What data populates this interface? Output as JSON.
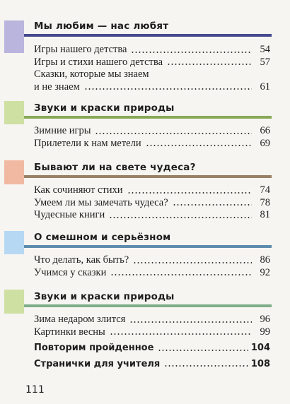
{
  "sections": [
    {
      "title": "Мы любим — нас любят",
      "colors": {
        "marker": "#b9b5dd",
        "rule": "#454a8f"
      },
      "entries": [
        {
          "title": "Игры нашего детства",
          "page": "54"
        },
        {
          "title": "Игры и стихи нашего детства",
          "page": "57"
        },
        {
          "title_line1": "Сказки, которые мы знаем",
          "title_line2": "и не знаем",
          "page": "61"
        }
      ]
    },
    {
      "title": "Звуки и краски природы",
      "colors": {
        "marker": "#cfe0a3",
        "rule": "#88a858"
      },
      "entries": [
        {
          "title": "Зимние игры",
          "page": "66"
        },
        {
          "title": "Прилетели к нам метели",
          "page": "69"
        }
      ]
    },
    {
      "title": "Бывают ли на свете чудеса?",
      "colors": {
        "marker": "#f1b9a2",
        "rule": "#9a8066"
      },
      "entries": [
        {
          "title": "Как сочиняют стихи",
          "page": "74"
        },
        {
          "title": "Умеем ли мы замечать чудеса?",
          "page": "78"
        },
        {
          "title": "Чудесные книги",
          "page": "81"
        }
      ]
    },
    {
      "title": "О смешном и серьёзном",
      "colors": {
        "marker": "#b7d8f2",
        "rule": "#5d8cad"
      },
      "entries": [
        {
          "title": "Что делать, как быть?",
          "page": "86"
        },
        {
          "title": "Учимся у сказки",
          "page": "92"
        }
      ]
    },
    {
      "title": "Звуки и краски природы",
      "colors": {
        "marker": "#cfe0a3",
        "rule": "#7fae8a"
      },
      "entries": [
        {
          "title": "Зима недаром злится",
          "page": "96"
        },
        {
          "title": "Картинки весны",
          "page": "99"
        },
        {
          "title": "Повторим пройденное",
          "page": "104",
          "bold": true
        },
        {
          "title": "Странички для учителя",
          "page": "108",
          "bold": true
        }
      ]
    }
  ],
  "page_number": "111"
}
